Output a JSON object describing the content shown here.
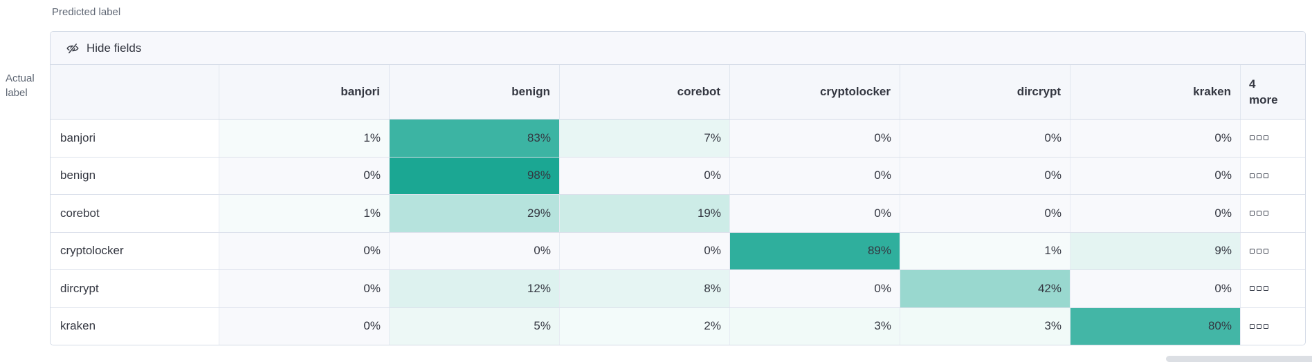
{
  "axis": {
    "predicted_label": "Predicted label",
    "actual_label_line1": "Actual",
    "actual_label_line2": "label"
  },
  "toolbar": {
    "hide_fields_label": "Hide fields",
    "icon": "eye-closed-icon"
  },
  "matrix": {
    "column_headers": [
      "banjori",
      "benign",
      "corebot",
      "cryptolocker",
      "dircrypt",
      "kraken"
    ],
    "more_header_line1": "4",
    "more_header_line2": "more",
    "value_suffix": "%",
    "more_icon": "boxes-horizontal-icon",
    "rows": [
      {
        "label": "banjori",
        "values": [
          1,
          83,
          7,
          0,
          0,
          0
        ]
      },
      {
        "label": "benign",
        "values": [
          0,
          98,
          0,
          0,
          0,
          0
        ]
      },
      {
        "label": "corebot",
        "values": [
          1,
          29,
          19,
          0,
          0,
          0
        ]
      },
      {
        "label": "cryptolocker",
        "values": [
          0,
          0,
          0,
          89,
          1,
          9
        ]
      },
      {
        "label": "dircrypt",
        "values": [
          0,
          12,
          8,
          0,
          42,
          0
        ]
      },
      {
        "label": "kraken",
        "values": [
          0,
          5,
          2,
          3,
          3,
          80
        ]
      }
    ]
  },
  "colors": {
    "heatmap_base": "#16A591",
    "zero_cell_bg": "#F8F9FC",
    "header_bg": "#F5F7FB",
    "toolbar_bg": "#F7F8FC",
    "outer_border": "#D3DAE6",
    "text": "#343741",
    "axis_text": "#5E6673",
    "scrollbar_thumb": "#DCDFE4"
  }
}
